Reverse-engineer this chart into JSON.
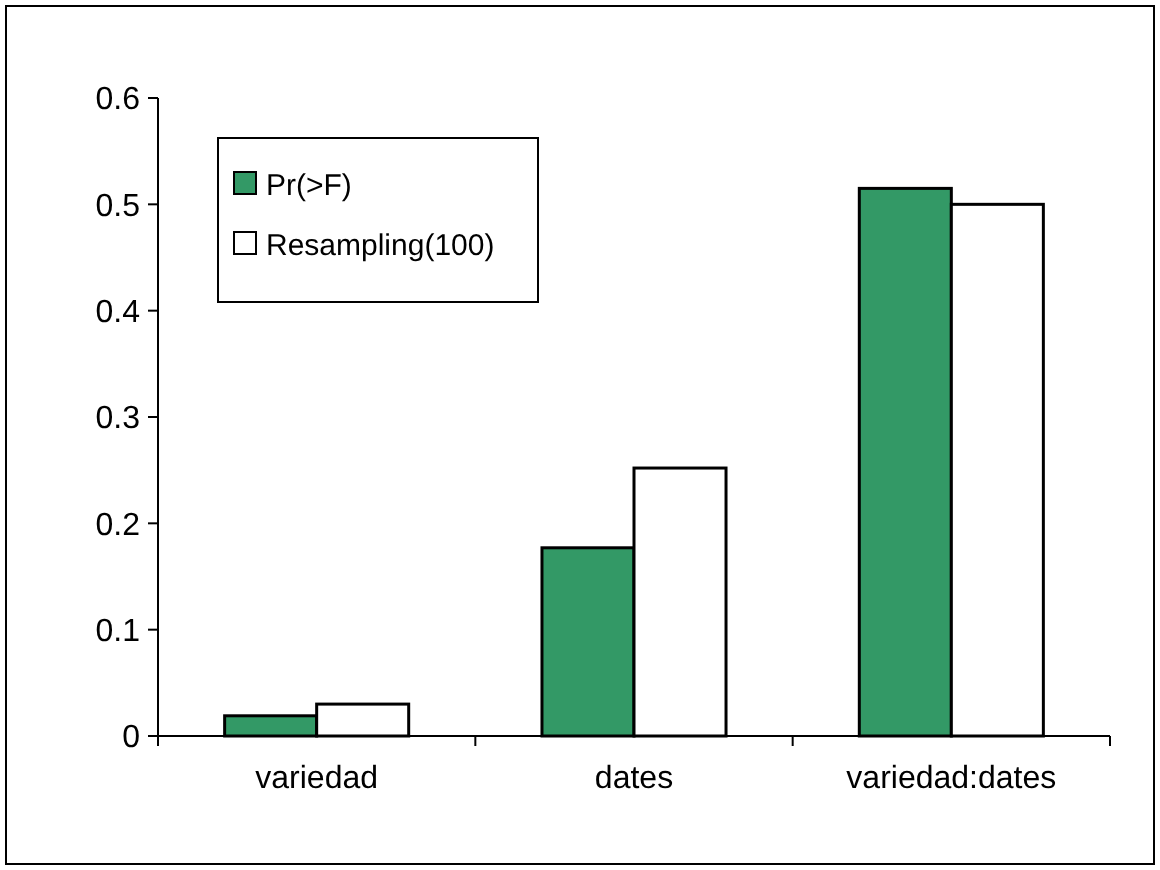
{
  "chart_data": {
    "type": "bar",
    "categories": [
      "variedad",
      "dates",
      "variedad:dates"
    ],
    "series": [
      {
        "name": "Pr(>F)",
        "color": "#339966",
        "values": [
          0.019,
          0.177,
          0.515
        ]
      },
      {
        "name": "Resampling(100)",
        "color": "#ffffff",
        "values": [
          0.03,
          0.252,
          0.5
        ]
      }
    ],
    "ylim": [
      0,
      0.6
    ],
    "yticks": [
      0,
      0.1,
      0.2,
      0.3,
      0.4,
      0.5,
      0.6
    ],
    "legend": "top left",
    "grid": false
  }
}
